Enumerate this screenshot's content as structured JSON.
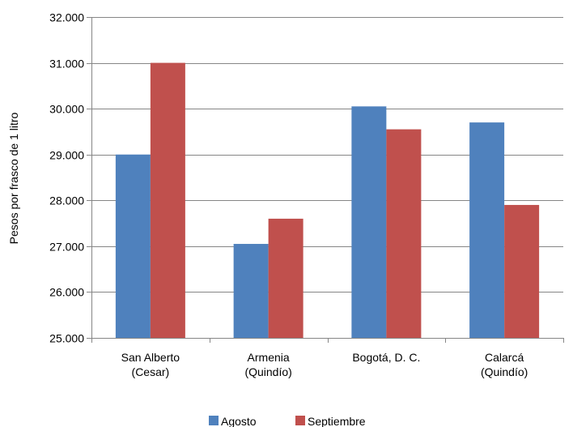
{
  "chart_data": {
    "type": "bar",
    "title": "",
    "xlabel": "",
    "ylabel": "Pesos por frasco de 1 litro",
    "ylim": [
      25000,
      32000
    ],
    "yticks": [
      25000,
      26000,
      27000,
      28000,
      29000,
      30000,
      31000,
      32000
    ],
    "ytick_labels": [
      "25.000",
      "26.000",
      "27.000",
      "28.000",
      "29.000",
      "30.000",
      "31.000",
      "32.000"
    ],
    "categories": [
      [
        "San Alberto",
        "(Cesar)"
      ],
      [
        "Armenia",
        "(Quindío)"
      ],
      [
        "Bogotá, D. C."
      ],
      [
        "Calarcá",
        "(Quindío)"
      ]
    ],
    "series": [
      {
        "name": "Agosto",
        "color": "#4f81bd",
        "values": [
          29000,
          27050,
          30050,
          29700
        ]
      },
      {
        "name": "Septiembre",
        "color": "#c0504d",
        "values": [
          31000,
          27600,
          29550,
          27900
        ]
      }
    ],
    "grid": true,
    "legend_position": "bottom"
  }
}
